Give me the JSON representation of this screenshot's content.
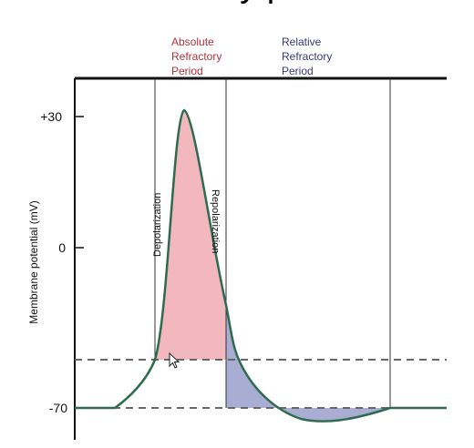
{
  "title_fragment": "refractory period",
  "periods": {
    "absolute": [
      "Absolute",
      "Refractory",
      "Period"
    ],
    "relative": [
      "Relative",
      "Refractory",
      "Period"
    ]
  },
  "phases": {
    "depolarization": "Depolarization",
    "repolarization": "Repolarization"
  },
  "axis": {
    "ylabel": "Membrane potential (mV)",
    "ticks": [
      "+30",
      "0",
      "-70"
    ]
  },
  "colors": {
    "absolute_fill": "#f2b8bd",
    "relative_fill": "#a9acd3",
    "curve": "#2e6b4f",
    "absolute_text": "#b0303a",
    "relative_text": "#353a7a"
  }
}
